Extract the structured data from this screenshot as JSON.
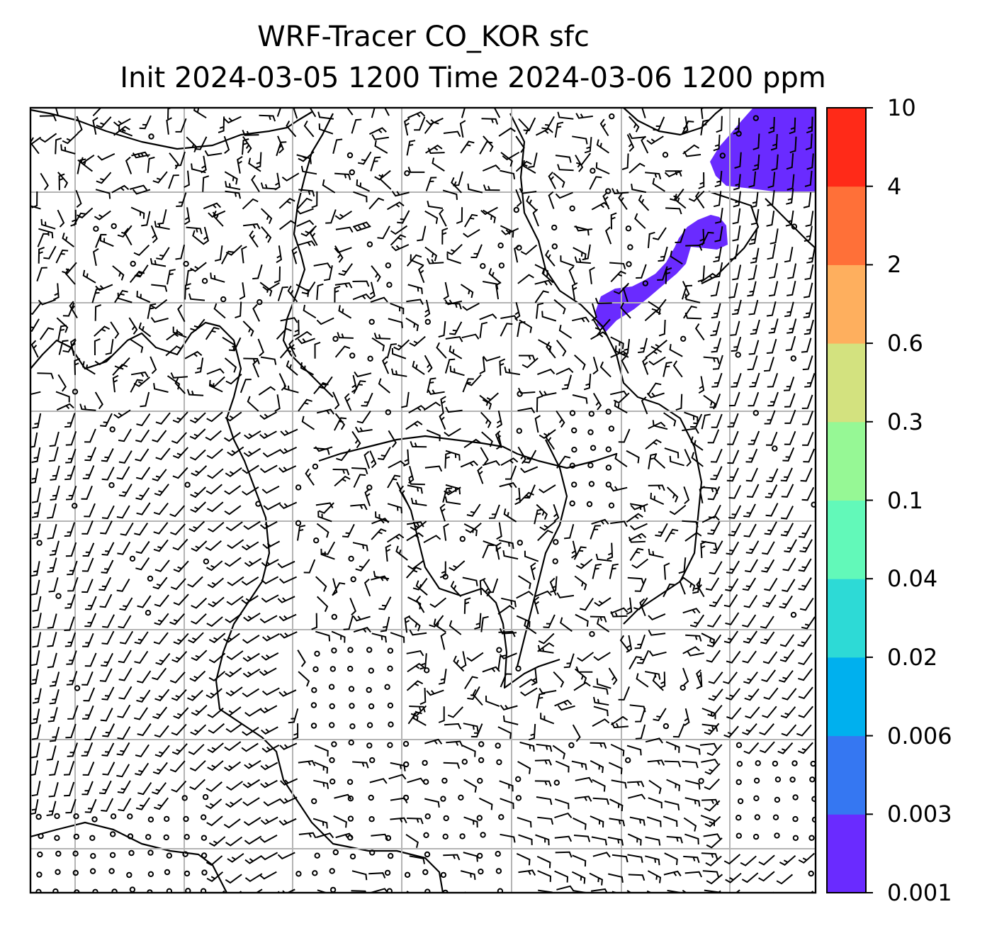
{
  "title": {
    "line1": "WRF-Tracer CO_KOR sfc",
    "line2": "Init 2024-03-05 1200 Time 2024-03-06 1200 ppm"
  },
  "colorbar": {
    "levels": [
      "0.001",
      "0.003",
      "0.006",
      "0.02",
      "0.04",
      "0.1",
      "0.3",
      "0.6",
      "2",
      "4",
      "10"
    ],
    "colors": [
      "#6a2bff",
      "#3577f2",
      "#00b0ee",
      "#2ddad6",
      "#62f9b9",
      "#96f895",
      "#d3e27f",
      "#feaf5e",
      "#ff7038",
      "#ff2a18"
    ]
  },
  "map": {
    "field_color": "#6a2bff",
    "grid_color": "#b4b4b4",
    "barb_color": "#000000"
  }
}
